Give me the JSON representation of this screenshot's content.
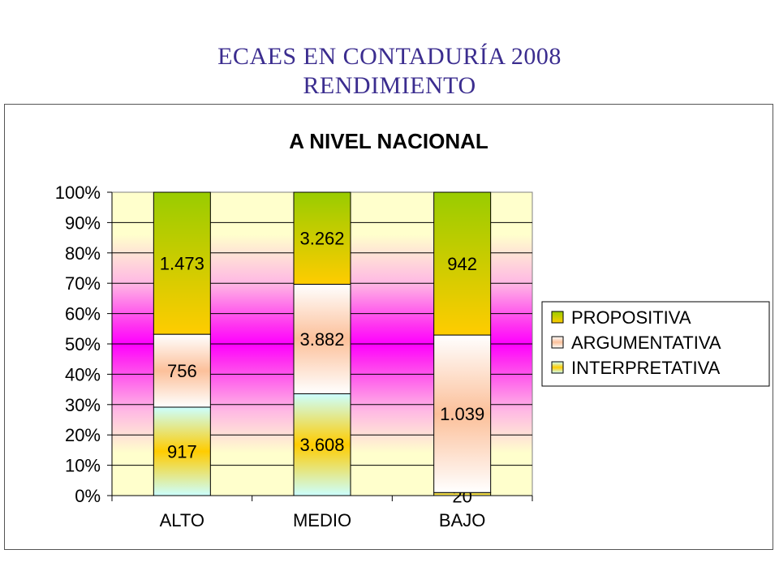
{
  "slide": {
    "title_line1": "ECAES EN CONTADURÍA 2008",
    "title_line2": "RENDIMIENTO"
  },
  "chart_data": {
    "type": "bar",
    "stacked": "percent",
    "title": "A NIVEL NACIONAL",
    "categories": [
      "ALTO",
      "MEDIO",
      "BAJO"
    ],
    "series": [
      {
        "name": "INTERPRETATIVA",
        "values": [
          917,
          3608,
          20
        ],
        "labels": [
          "917",
          "3.608",
          "20"
        ]
      },
      {
        "name": "ARGUMENTATIVA",
        "values": [
          756,
          3882,
          1039
        ],
        "labels": [
          "756",
          "3.882",
          "1.039"
        ]
      },
      {
        "name": "PROPOSITIVA",
        "values": [
          1473,
          3262,
          942
        ],
        "labels": [
          "1.473",
          "3.262",
          "942"
        ]
      }
    ],
    "y_ticks": [
      "0%",
      "10%",
      "20%",
      "30%",
      "40%",
      "50%",
      "60%",
      "70%",
      "80%",
      "90%",
      "100%"
    ],
    "ylim": [
      0,
      100
    ],
    "legend_position": "right",
    "grid": true,
    "colors": {
      "propositiva_top": "#99cc00",
      "propositiva_bottom": "#ffcc00",
      "argumentativa_light": "#ffffff",
      "argumentativa_dark": "#fcc09a",
      "interpretativa_top": "#ccffff",
      "interpretativa_bottom": "#ffcc00",
      "plot_outer": "#ffffcc",
      "plot_center": "#ff00ff"
    }
  }
}
